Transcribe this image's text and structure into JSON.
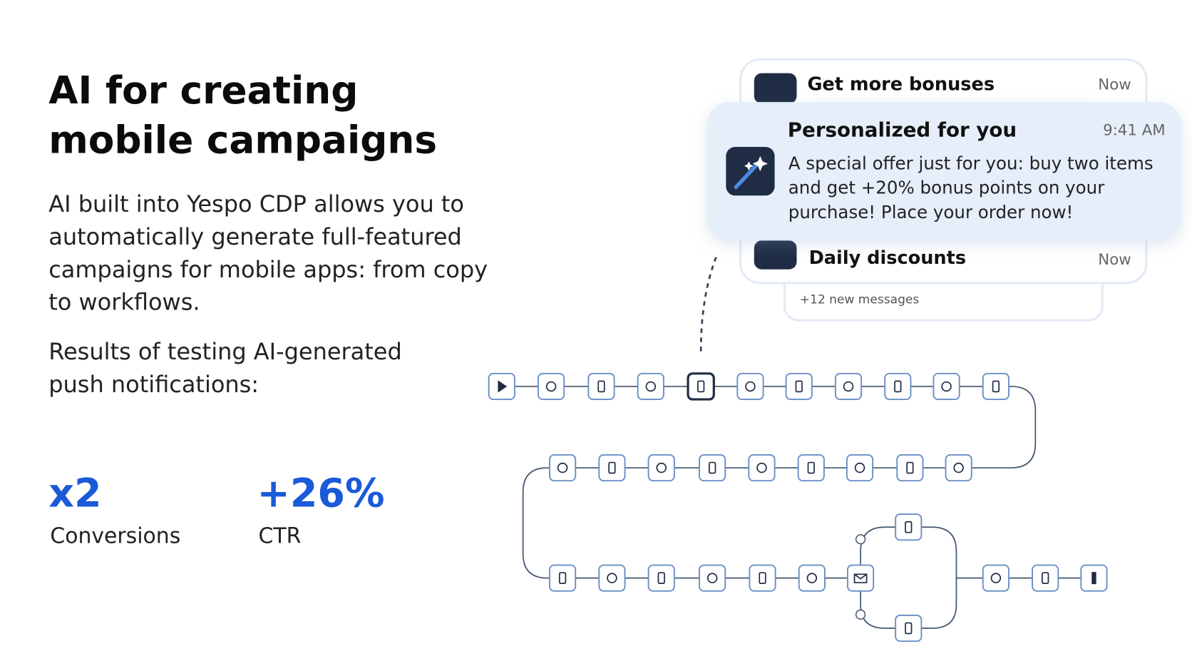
{
  "header": {
    "title_lines": [
      "AI for creating",
      "mobile campaigns"
    ]
  },
  "description_lines": [
    "AI built into Yespo CDP allows you to",
    "automatically generate full-featured",
    "campaigns for mobile apps: from copy",
    "to workflows."
  ],
  "results_intro_lines": [
    "Results of testing AI-generated",
    "push notifications:"
  ],
  "stats": [
    {
      "value": "x2",
      "label": "Conversions"
    },
    {
      "value": "+26%",
      "label": "CTR"
    }
  ],
  "notifications": {
    "back": {
      "title": "Get more bonuses",
      "time": "Now"
    },
    "front": {
      "title": "Personalized for you",
      "time": "9:41 AM",
      "body_lines": [
        "A special offer just for you: buy two items",
        "and get +20% bonus points on your",
        "purchase! Place your order now!"
      ]
    },
    "below": {
      "title": "Daily discounts",
      "time": "Now"
    },
    "more": "+12 new messages"
  }
}
